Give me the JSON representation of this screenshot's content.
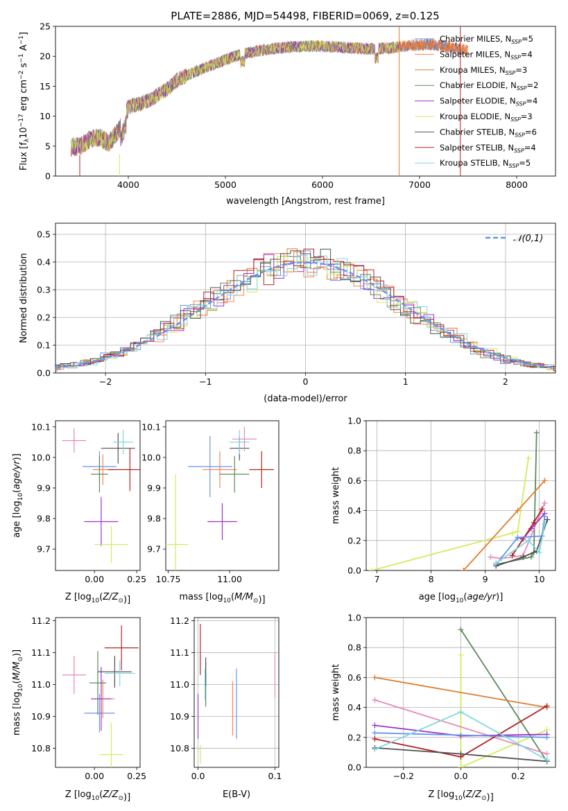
{
  "figure": {
    "title": "PLATE=2886, MJD=54498, FIBERID=0069, z=0.125"
  },
  "colors": {
    "models": [
      "#6495ed",
      "#ff7f50",
      "#e07c2c",
      "#5b8a5b",
      "#9932cc",
      "#d4ea5c",
      "#505050",
      "#b22222",
      "#7fd6e0"
    ],
    "normal": "#6495ed",
    "pink": "#e787b6"
  },
  "chart_data": [
    {
      "id": "spectrum",
      "type": "line",
      "xlabel": "wavelength [Angstrom, rest frame]",
      "ylabel": "Flux [f_λ10^−17 erg cm^−2 s^−1 A^−1]",
      "xlim": [
        3250,
        8400
      ],
      "ylim": [
        0,
        25
      ],
      "xticks": [
        4000,
        5000,
        6000,
        7000,
        8000
      ],
      "yticks": [
        0,
        5,
        10,
        15,
        20,
        25
      ],
      "legend": "top-right",
      "series": [
        {
          "name": "Chabrier MILES, N_SSP=5",
          "range": [
            3400,
            7500
          ]
        },
        {
          "name": "Salpeter MILES, N_SSP=4",
          "range": [
            3400,
            7500
          ]
        },
        {
          "name": "Kroupa MILES, N_SSP=3",
          "range": [
            3400,
            7500
          ]
        },
        {
          "name": "Chabrier ELODIE, N_SSP=2",
          "range": [
            3400,
            6800
          ]
        },
        {
          "name": "Salpeter ELODIE, N_SSP=4",
          "range": [
            3400,
            6800
          ]
        },
        {
          "name": "Kroupa ELODIE, N_SSP=3",
          "range": [
            3400,
            6800
          ]
        },
        {
          "name": "Chabrier STELIB, N_SSP=6",
          "range": [
            3400,
            7420
          ]
        },
        {
          "name": "Salpeter STELIB, N_SSP=4",
          "range": [
            3400,
            7420
          ]
        },
        {
          "name": "Kroupa STELIB, N_SSP=5",
          "range": [
            3400,
            7420
          ]
        }
      ],
      "continuum": {
        "x": [
          3400,
          3500,
          3600,
          3700,
          3800,
          3900,
          4000,
          4100,
          4200,
          4300,
          4400,
          4500,
          4700,
          4900,
          5100,
          5300,
          5500,
          5700,
          5900,
          6100,
          6300,
          6500,
          6700,
          6900,
          7100,
          7300,
          7500
        ],
        "y": [
          4.8,
          5.0,
          6.0,
          6.5,
          5.5,
          7.5,
          11.5,
          12.0,
          12.5,
          13.5,
          14.5,
          16.0,
          17.5,
          18.8,
          20.0,
          20.8,
          21.3,
          21.6,
          21.7,
          21.6,
          21.4,
          21.2,
          21.4,
          21.8,
          22.0,
          21.6,
          21.0
        ]
      }
    },
    {
      "id": "residuals",
      "type": "histogram",
      "xlabel": "(data-model)/error",
      "ylabel": "Normed distribution",
      "xlim": [
        -2.5,
        2.5
      ],
      "ylim": [
        0,
        0.54
      ],
      "xticks": [
        -2,
        -1,
        0,
        1,
        2
      ],
      "yticks": [
        0.0,
        0.1,
        0.2,
        0.3,
        0.4,
        0.5
      ],
      "legend_label": "𝒩(0,1)",
      "legend": "top-right",
      "bin_width": 0.1,
      "noise_seed": [
        0.9,
        -0.6,
        0.3,
        0.7,
        -0.8,
        0.5,
        -0.2,
        -0.9,
        0.6,
        0.1,
        -0.4,
        0.8,
        -0.7,
        0.2,
        0.4,
        -0.5,
        0.9,
        -0.3,
        0.0,
        -0.6,
        0.7,
        -0.1,
        0.5,
        -0.8,
        0.3,
        0.6,
        -0.2,
        0.8,
        -0.9,
        0.1,
        0.4,
        -0.4,
        0.2,
        -0.7,
        0.9,
        -0.3,
        0.5,
        0.0,
        -0.5,
        0.7,
        -0.6,
        0.3,
        0.6,
        -0.1,
        0.8,
        -0.8,
        0.2,
        0.4,
        -0.9,
        0.1
      ]
    },
    {
      "id": "age_vs_Z",
      "type": "errorbar",
      "xlabel": "Z [log10(Z/Z⊙)]",
      "ylabel": "age [log10(age/yr)]",
      "xlim": [
        -0.23,
        0.27
      ],
      "ylim": [
        9.63,
        10.12
      ],
      "xticks": [
        0.0,
        0.25
      ],
      "yticks": [
        9.7,
        9.8,
        9.9,
        10.0,
        10.1
      ],
      "points": [
        {
          "c": 0,
          "x": 0.03,
          "y": 9.97,
          "xe": 0.1,
          "ye": 0.05
        },
        {
          "c": 1,
          "x": 0.05,
          "y": 9.96,
          "xe": 0.06,
          "ye": 0.05
        },
        {
          "c": 3,
          "x": 0.03,
          "y": 9.945,
          "xe": 0.05,
          "ye": 0.06
        },
        {
          "c": 4,
          "x": 0.04,
          "y": 9.79,
          "xe": 0.1,
          "ye": 0.08
        },
        {
          "c": 5,
          "x": 0.1,
          "y": 9.715,
          "xe": 0.1,
          "ye": 0.06
        },
        {
          "c": 6,
          "x": 0.14,
          "y": 10.03,
          "xe": 0.1,
          "ye": 0.05
        },
        {
          "c": 7,
          "x": 0.21,
          "y": 9.96,
          "xe": 0.13,
          "ye": 0.07
        },
        {
          "c": 8,
          "x": 0.17,
          "y": 10.05,
          "xe": 0.06,
          "ye": 0.04
        },
        {
          "c": 9,
          "x": -0.12,
          "y": 10.055,
          "xe": 0.07,
          "ye": 0.04
        }
      ]
    },
    {
      "id": "age_vs_mass",
      "type": "errorbar",
      "xlabel": "mass [log10(M/M⊙)]",
      "ylabel": "",
      "xlim": [
        10.74,
        11.2
      ],
      "ylim": [
        9.63,
        10.12
      ],
      "xticks": [
        10.75,
        11.0
      ],
      "yticks": [
        9.7,
        9.8,
        9.9,
        10.0,
        10.1
      ],
      "points": [
        {
          "c": 0,
          "x": 10.92,
          "y": 9.97,
          "xe": 0.09,
          "ye": 0.1
        },
        {
          "c": 1,
          "x": 10.96,
          "y": 9.96,
          "xe": 0.07,
          "ye": 0.06
        },
        {
          "c": 3,
          "x": 11.02,
          "y": 9.945,
          "xe": 0.06,
          "ye": 0.06
        },
        {
          "c": 4,
          "x": 10.97,
          "y": 9.79,
          "xe": 0.06,
          "ye": 0.06
        },
        {
          "c": 5,
          "x": 10.78,
          "y": 9.715,
          "xe": 0.05,
          "ye": 0.23
        },
        {
          "c": 6,
          "x": 11.04,
          "y": 10.03,
          "xe": 0.04,
          "ye": 0.04
        },
        {
          "c": 7,
          "x": 11.13,
          "y": 9.96,
          "xe": 0.05,
          "ye": 0.06
        },
        {
          "c": 8,
          "x": 11.04,
          "y": 10.05,
          "xe": 0.04,
          "ye": 0.04
        },
        {
          "c": 9,
          "x": 11.06,
          "y": 10.06,
          "xe": 0.05,
          "ye": 0.04
        }
      ]
    },
    {
      "id": "weight_vs_age",
      "type": "line",
      "xlabel": "age [log10(age/yr)]",
      "ylabel": "mass weight",
      "xlim": [
        6.8,
        10.3
      ],
      "ylim": [
        0,
        1
      ],
      "xticks": [
        7,
        8,
        9,
        10
      ],
      "yticks": [
        0.0,
        0.2,
        0.4,
        0.6,
        0.8,
        1.0
      ],
      "series": [
        {
          "c": 3,
          "x": [
            9.2,
            9.85,
            9.9,
            9.95
          ],
          "y": [
            0.04,
            0.09,
            0.12,
            0.92
          ]
        },
        {
          "c": 5,
          "x": [
            6.9,
            9.5,
            9.6,
            9.8
          ],
          "y": [
            0.0,
            0.25,
            0.26,
            0.75
          ]
        },
        {
          "c": 2,
          "x": [
            8.6,
            9.6,
            10.1
          ],
          "y": [
            0.0,
            0.4,
            0.6
          ]
        },
        {
          "c": 9,
          "x": [
            9.1,
            9.3,
            9.7,
            10.1
          ],
          "y": [
            0.09,
            0.08,
            0.1,
            0.45
          ]
        },
        {
          "c": 4,
          "x": [
            9.6,
            9.7,
            9.85,
            10.1
          ],
          "y": [
            0.22,
            0.21,
            0.28,
            0.38
          ]
        },
        {
          "c": 7,
          "x": [
            9.5,
            9.9,
            10.05
          ],
          "y": [
            0.1,
            0.32,
            0.41
          ]
        },
        {
          "c": 0,
          "x": [
            9.2,
            9.6,
            10.05,
            10.1
          ],
          "y": [
            0.04,
            0.22,
            0.23,
            0.36
          ]
        },
        {
          "c": 6,
          "x": [
            9.2,
            9.7,
            9.95,
            10.15
          ],
          "y": [
            0.03,
            0.09,
            0.13,
            0.34
          ]
        },
        {
          "c": 8,
          "x": [
            9.2,
            9.8,
            10.0,
            10.1
          ],
          "y": [
            0.05,
            0.2,
            0.12,
            0.31
          ]
        }
      ]
    },
    {
      "id": "mass_vs_Z",
      "type": "errorbar",
      "xlabel": "Z [log10(Z/Z⊙)]",
      "ylabel": "mass [log10(M/M⊙)]",
      "xlim": [
        -0.23,
        0.27
      ],
      "ylim": [
        10.74,
        11.21
      ],
      "xticks": [
        0.0,
        0.25
      ],
      "yticks": [
        10.8,
        10.9,
        11.0,
        11.1,
        11.2
      ],
      "points": [
        {
          "c": 0,
          "x": 0.03,
          "y": 10.91,
          "xe": 0.09,
          "ye": 0.06
        },
        {
          "c": 1,
          "x": 0.05,
          "y": 10.955,
          "xe": 0.07,
          "ye": 0.06
        },
        {
          "c": 3,
          "x": 0.02,
          "y": 11.005,
          "xe": 0.05,
          "ye": 0.1
        },
        {
          "c": 4,
          "x": 0.04,
          "y": 10.955,
          "xe": 0.06,
          "ye": 0.1
        },
        {
          "c": 5,
          "x": 0.1,
          "y": 10.78,
          "xe": 0.07,
          "ye": 0.1
        },
        {
          "c": 6,
          "x": 0.12,
          "y": 11.04,
          "xe": 0.1,
          "ye": 0.05
        },
        {
          "c": 7,
          "x": 0.16,
          "y": 11.115,
          "xe": 0.1,
          "ye": 0.07
        },
        {
          "c": 8,
          "x": 0.15,
          "y": 11.035,
          "xe": 0.09,
          "ye": 0.04
        },
        {
          "c": 9,
          "x": -0.12,
          "y": 11.03,
          "xe": 0.07,
          "ye": 0.06
        }
      ]
    },
    {
      "id": "mass_vs_ebv",
      "type": "errorbar",
      "xlabel": "E(B-V)",
      "ylabel": "",
      "xlim": [
        -0.005,
        0.105
      ],
      "ylim": [
        10.74,
        11.21
      ],
      "xticks": [
        0.0,
        0.1
      ],
      "yticks": [
        10.8,
        10.9,
        11.0,
        11.1,
        11.2
      ],
      "tick_labels_x": [
        "0.0",
        "0.1"
      ],
      "points": [
        {
          "c": 0,
          "x": 0.05,
          "y": 10.94,
          "xe": 0,
          "ye": 0.11
        },
        {
          "c": 1,
          "x": 0.045,
          "y": 10.925,
          "xe": 0,
          "ye": 0.085
        },
        {
          "c": 3,
          "x": 0.01,
          "y": 11.0,
          "xe": 0,
          "ye": 0.07
        },
        {
          "c": 4,
          "x": 0.0,
          "y": 10.9,
          "xe": 0,
          "ye": 0.07
        },
        {
          "c": 5,
          "x": 0.003,
          "y": 10.78,
          "xe": 0,
          "ye": 0.03
        },
        {
          "c": 6,
          "x": 0.01,
          "y": 11.04,
          "xe": 0,
          "ye": 0.045
        },
        {
          "c": 7,
          "x": 0.003,
          "y": 11.11,
          "xe": 0,
          "ye": 0.08
        },
        {
          "c": 8,
          "x": 0.009,
          "y": 11.0,
          "xe": 0,
          "ye": 0.05
        },
        {
          "c": 9,
          "x": 0.1,
          "y": 11.03,
          "xe": 0,
          "ye": 0.07
        }
      ]
    },
    {
      "id": "weight_vs_Z",
      "type": "line",
      "xlabel": "Z [log10(Z/Z⊙)]",
      "ylabel": "mass weight",
      "xlim": [
        -0.33,
        0.33
      ],
      "ylim": [
        0,
        1
      ],
      "xticks": [
        -0.2,
        0.0,
        0.2
      ],
      "yticks": [
        0.0,
        0.2,
        0.4,
        0.6,
        0.8,
        1.0
      ],
      "series": [
        {
          "c": 3,
          "x": [
            0.0,
            0.3
          ],
          "y": [
            0.92,
            0.04
          ]
        },
        {
          "c": 5,
          "x": [
            0.0,
            0.0,
            0.3
          ],
          "y": [
            0.75,
            0.0,
            0.25
          ]
        },
        {
          "c": 2,
          "x": [
            -0.3,
            0.3
          ],
          "y": [
            0.6,
            0.4
          ]
        },
        {
          "c": 9,
          "x": [
            -0.3,
            0.3
          ],
          "y": [
            0.45,
            0.09
          ]
        },
        {
          "c": 4,
          "x": [
            -0.3,
            0.0,
            0.3
          ],
          "y": [
            0.28,
            0.21,
            0.22
          ]
        },
        {
          "c": 7,
          "x": [
            -0.3,
            0.0,
            0.3
          ],
          "y": [
            0.19,
            0.07,
            0.41
          ]
        },
        {
          "c": 0,
          "x": [
            -0.3,
            0.3
          ],
          "y": [
            0.23,
            0.2
          ]
        },
        {
          "c": 6,
          "x": [
            -0.3,
            0.0,
            0.3
          ],
          "y": [
            0.13,
            0.09,
            0.04
          ]
        },
        {
          "c": 8,
          "x": [
            -0.3,
            0.0,
            0.3
          ],
          "y": [
            0.12,
            0.37,
            0.05
          ]
        }
      ]
    }
  ]
}
